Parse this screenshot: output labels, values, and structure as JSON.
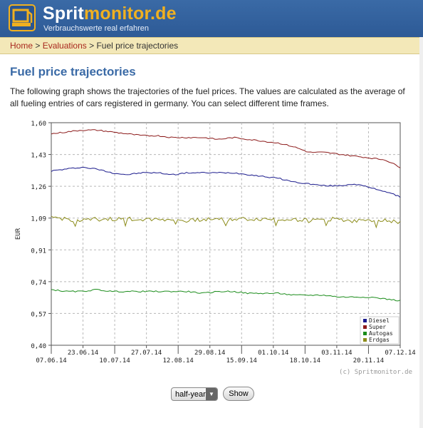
{
  "header": {
    "logo_main": "Sprit",
    "logo_accent": "monitor.de",
    "tagline": "Verbrauchswerte real erfahren"
  },
  "breadcrumb": {
    "home": "Home",
    "sep1": " > ",
    "evaluations": "Evaluations",
    "sep2": " > ",
    "current": "Fuel price trajectories"
  },
  "page": {
    "title": "Fuel price trajectories",
    "intro": "The following graph shows the trajectories of the fuel prices. The values are calculated as the average of all fueling entries of cars registered in germany. You can select different time frames."
  },
  "chart_data": {
    "type": "line",
    "ylabel": "EUR",
    "ylim": [
      0.4,
      1.6
    ],
    "yticks": [
      "1,60",
      "1,43",
      "1,26",
      "1,09",
      "0,91",
      "0,74",
      "0,57",
      "0,40"
    ],
    "xticks": [
      "07.06.14",
      "23.06.14",
      "10.07.14",
      "27.07.14",
      "12.08.14",
      "29.08.14",
      "15.09.14",
      "01.10.14",
      "18.10.14",
      "03.11.14",
      "20.11.14",
      "07.12.14"
    ],
    "grid": true,
    "legend_position": "bottom-right",
    "credit": "(c) Spritmonitor.de",
    "series": [
      {
        "name": "Diesel",
        "color": "#1a1a8c",
        "values": [
          1.34,
          1.35,
          1.36,
          1.35,
          1.33,
          1.32,
          1.33,
          1.33,
          1.32,
          1.33,
          1.33,
          1.33,
          1.33,
          1.32,
          1.31,
          1.3,
          1.28,
          1.27,
          1.26,
          1.26,
          1.27,
          1.25,
          1.23,
          1.2
        ]
      },
      {
        "name": "Super",
        "color": "#8c1a1a",
        "values": [
          1.54,
          1.55,
          1.56,
          1.56,
          1.55,
          1.54,
          1.53,
          1.53,
          1.52,
          1.52,
          1.52,
          1.51,
          1.52,
          1.51,
          1.5,
          1.49,
          1.47,
          1.44,
          1.44,
          1.43,
          1.42,
          1.41,
          1.4,
          1.36
        ]
      },
      {
        "name": "Autogas",
        "color": "#1a8c1a",
        "values": [
          0.7,
          0.69,
          0.69,
          0.7,
          0.69,
          0.69,
          0.69,
          0.69,
          0.69,
          0.69,
          0.68,
          0.69,
          0.69,
          0.68,
          0.68,
          0.68,
          0.67,
          0.67,
          0.67,
          0.66,
          0.66,
          0.66,
          0.65,
          0.64
        ]
      },
      {
        "name": "Erdgas",
        "color": "#8c8c1a",
        "values": [
          1.09,
          1.08,
          1.07,
          1.08,
          1.08,
          1.08,
          1.08,
          1.08,
          1.08,
          1.07,
          1.08,
          1.08,
          1.08,
          1.08,
          1.08,
          1.08,
          1.08,
          1.07,
          1.08,
          1.08,
          1.07,
          1.07,
          1.08,
          1.06
        ]
      }
    ]
  },
  "controls": {
    "period_value": "half-year",
    "show_label": "Show"
  }
}
